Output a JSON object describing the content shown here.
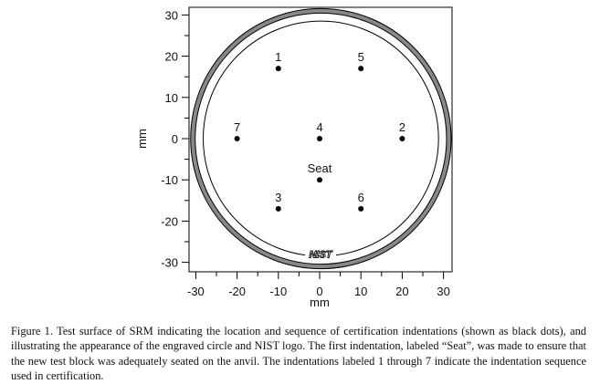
{
  "chart_data": {
    "type": "scatter",
    "xlabel": "mm",
    "ylabel": "mm",
    "xlim": [
      -32,
      32
    ],
    "ylim": [
      -32,
      32
    ],
    "xticks": [
      -30,
      -20,
      -10,
      0,
      10,
      20,
      30
    ],
    "yticks": [
      -30,
      -20,
      -10,
      0,
      10,
      20,
      30
    ],
    "grid": false,
    "points": [
      {
        "label": "1",
        "x": -10,
        "y": 17
      },
      {
        "label": "5",
        "x": 10,
        "y": 17
      },
      {
        "label": "7",
        "x": -20,
        "y": 0
      },
      {
        "label": "4",
        "x": 0,
        "y": 0
      },
      {
        "label": "2",
        "x": 20,
        "y": 0
      },
      {
        "label": "Seat",
        "x": 0,
        "y": -10
      },
      {
        "label": "3",
        "x": -10,
        "y": -17
      },
      {
        "label": "6",
        "x": 10,
        "y": -17
      }
    ],
    "circles": [
      {
        "name": "engraved-band",
        "radius_mm": 31,
        "color": "#888888"
      },
      {
        "name": "inner-circle",
        "radius_mm": 28.5,
        "color": "#000000"
      }
    ],
    "logo": "NIST"
  },
  "caption": "Figure 1.  Test surface of SRM indicating the location and sequence of certification indentations (shown as black dots), and illustrating the appearance of the engraved circle and NIST logo.  The first indentation, labeled “Seat”, was made to ensure that the new test block was adequately seated on the anvil.  The indentations labeled 1 through 7 indicate the indentation sequence used in certification."
}
